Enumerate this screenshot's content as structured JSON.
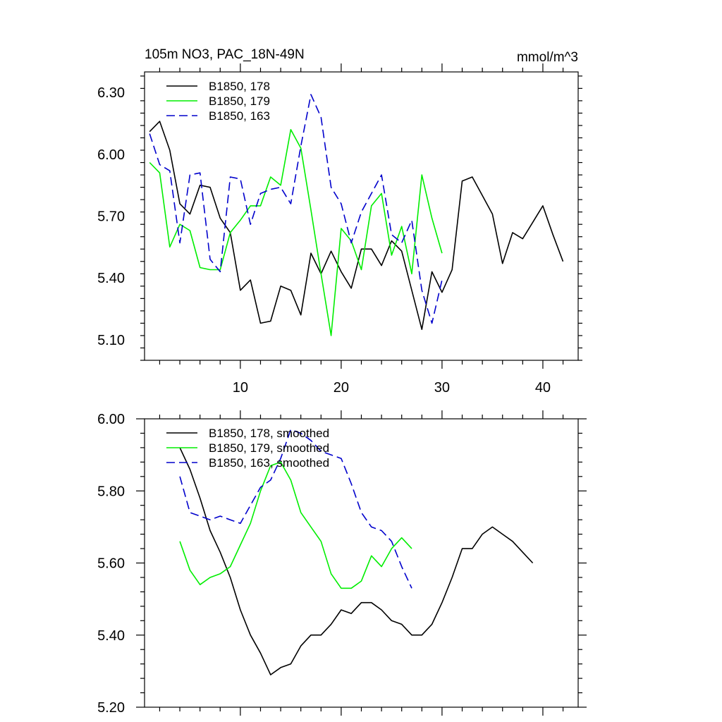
{
  "chart_data": [
    {
      "type": "line",
      "title": "105m NO3, PAC_18N-49N",
      "units": "mmol/m^3",
      "xlim": [
        0.5,
        43.5
      ],
      "ylim": [
        5.0,
        6.4
      ],
      "x_ticks": [
        10,
        20,
        30,
        40
      ],
      "y_ticks": [
        5.1,
        5.4,
        5.7,
        6.0,
        6.3
      ],
      "y_tick_labels": [
        "5.10",
        "5.40",
        "5.70",
        "6.00",
        "6.30"
      ],
      "legend_position": "top-left",
      "series": [
        {
          "name": "B1850, 178",
          "color": "#000000",
          "dash": "solid",
          "x": [
            1,
            2,
            3,
            4,
            5,
            6,
            7,
            8,
            9,
            10,
            11,
            12,
            13,
            14,
            15,
            16,
            17,
            18,
            19,
            20,
            21,
            22,
            23,
            24,
            25,
            26,
            27,
            28,
            29,
            30,
            31,
            32,
            33,
            34,
            35,
            36,
            37,
            38,
            39,
            40,
            41,
            42
          ],
          "values": [
            6.11,
            6.16,
            6.02,
            5.76,
            5.71,
            5.85,
            5.84,
            5.69,
            5.62,
            5.34,
            5.39,
            5.18,
            5.19,
            5.36,
            5.34,
            5.22,
            5.52,
            5.42,
            5.53,
            5.43,
            5.35,
            5.54,
            5.54,
            5.46,
            5.58,
            5.53,
            5.34,
            5.15,
            5.43,
            5.33,
            5.44,
            5.87,
            5.89,
            5.8,
            5.71,
            5.47,
            5.62,
            5.59,
            5.67,
            5.75,
            5.61,
            5.48
          ]
        },
        {
          "name": "B1850, 179",
          "color": "#00ee00",
          "dash": "solid",
          "x": [
            1,
            2,
            3,
            4,
            5,
            6,
            7,
            8,
            9,
            10,
            11,
            12,
            13,
            14,
            15,
            16,
            17,
            18,
            19,
            20,
            21,
            22,
            23,
            24,
            25,
            26,
            27,
            28,
            29,
            30
          ],
          "values": [
            5.96,
            5.91,
            5.55,
            5.66,
            5.63,
            5.45,
            5.44,
            5.44,
            5.62,
            5.68,
            5.75,
            5.75,
            5.89,
            5.85,
            6.12,
            6.03,
            5.73,
            5.42,
            5.12,
            5.64,
            5.58,
            5.44,
            5.75,
            5.81,
            5.51,
            5.65,
            5.42,
            5.9,
            5.69,
            5.52
          ]
        },
        {
          "name": "B1850, 163",
          "color": "#0000cc",
          "dash": "dashed",
          "x": [
            1,
            2,
            3,
            4,
            5,
            6,
            7,
            8,
            9,
            10,
            11,
            12,
            13,
            14,
            15,
            16,
            17,
            18,
            19,
            20,
            21,
            22,
            23,
            24,
            25,
            26,
            27,
            28,
            29,
            30
          ],
          "values": [
            6.1,
            5.95,
            5.92,
            5.57,
            5.9,
            5.91,
            5.49,
            5.43,
            5.89,
            5.88,
            5.66,
            5.81,
            5.83,
            5.84,
            5.76,
            6.04,
            6.29,
            6.18,
            5.84,
            5.76,
            5.57,
            5.72,
            5.81,
            5.9,
            5.61,
            5.57,
            5.68,
            5.34,
            5.18,
            5.39
          ]
        }
      ]
    },
    {
      "type": "line",
      "xlim": [
        0.5,
        43.5
      ],
      "ylim": [
        5.2,
        6.0
      ],
      "x_ticks": [
        10,
        20,
        30,
        40
      ],
      "y_ticks": [
        5.2,
        5.4,
        5.6,
        5.8,
        6.0
      ],
      "y_tick_labels": [
        "5.20",
        "5.40",
        "5.60",
        "5.80",
        "6.00"
      ],
      "legend_position": "top-left",
      "series": [
        {
          "name": "B1850, 178, smoothed",
          "color": "#000000",
          "dash": "solid",
          "x": [
            4,
            5,
            6,
            7,
            8,
            9,
            10,
            11,
            12,
            13,
            14,
            15,
            16,
            17,
            18,
            19,
            20,
            21,
            22,
            23,
            24,
            25,
            26,
            27,
            28,
            29,
            30,
            31,
            32,
            33,
            34,
            35,
            36,
            37,
            38,
            39
          ],
          "values": [
            5.92,
            5.86,
            5.78,
            5.69,
            5.63,
            5.56,
            5.47,
            5.4,
            5.35,
            5.29,
            5.31,
            5.32,
            5.37,
            5.4,
            5.4,
            5.43,
            5.47,
            5.46,
            5.49,
            5.49,
            5.47,
            5.44,
            5.43,
            5.4,
            5.4,
            5.43,
            5.49,
            5.56,
            5.64,
            5.64,
            5.68,
            5.7,
            5.68,
            5.66,
            5.63,
            5.6
          ]
        },
        {
          "name": "B1850, 179, smoothed",
          "color": "#00ee00",
          "dash": "solid",
          "x": [
            4,
            5,
            6,
            7,
            8,
            9,
            10,
            11,
            12,
            13,
            14,
            15,
            16,
            17,
            18,
            19,
            20,
            21,
            22,
            23,
            24,
            25,
            26,
            27
          ],
          "values": [
            5.66,
            5.58,
            5.54,
            5.56,
            5.57,
            5.59,
            5.65,
            5.71,
            5.8,
            5.87,
            5.88,
            5.83,
            5.74,
            5.7,
            5.66,
            5.57,
            5.53,
            5.53,
            5.55,
            5.62,
            5.59,
            5.64,
            5.67,
            5.64
          ]
        },
        {
          "name": "B1850, 163, smoothed",
          "color": "#0000cc",
          "dash": "dashed",
          "x": [
            4,
            5,
            6,
            7,
            8,
            9,
            10,
            11,
            12,
            13,
            14,
            15,
            16,
            17,
            18,
            19,
            20,
            21,
            22,
            23,
            24,
            25,
            26,
            27
          ],
          "values": [
            5.84,
            5.74,
            5.73,
            5.72,
            5.73,
            5.72,
            5.71,
            5.76,
            5.81,
            5.83,
            5.89,
            5.97,
            5.96,
            5.94,
            5.91,
            5.9,
            5.89,
            5.82,
            5.74,
            5.7,
            5.69,
            5.66,
            5.59,
            5.53
          ]
        }
      ]
    }
  ]
}
